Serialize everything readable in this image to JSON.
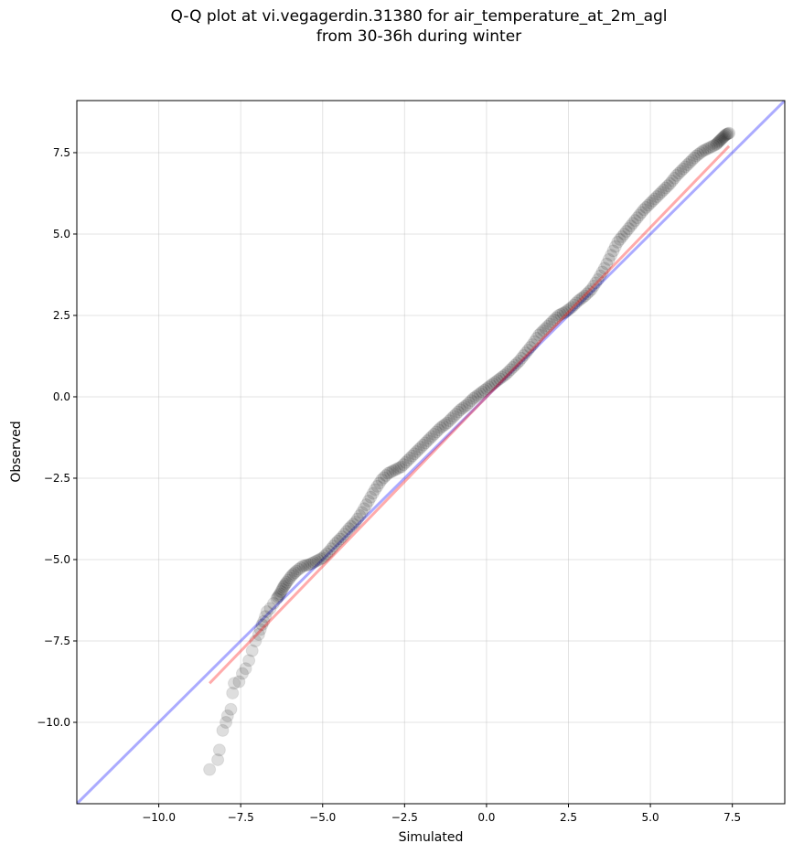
{
  "chart_data": {
    "type": "scatter",
    "title": "Q-Q plot at vi.vegagerdin.31380 for air_temperature_at_2m_agl",
    "subtitle": "from 30-36h during winter",
    "xlabel": "Simulated",
    "ylabel": "Observed",
    "xlim": [
      -12.5,
      9.1
    ],
    "ylim": [
      -12.5,
      9.1
    ],
    "xticks": [
      "−10.0",
      "−7.5",
      "−5.0",
      "−2.5",
      "0.0",
      "2.5",
      "5.0",
      "7.5"
    ],
    "yticks": [
      "−10.0",
      "−7.5",
      "−5.0",
      "−2.5",
      "0.0",
      "2.5",
      "5.0",
      "7.5"
    ],
    "xtick_values": [
      -10,
      -7.5,
      -5,
      -2.5,
      0,
      2.5,
      5,
      7.5
    ],
    "ytick_values": [
      -10,
      -7.5,
      -5,
      -2.5,
      0,
      2.5,
      5,
      7.5
    ],
    "grid": true,
    "colors": {
      "points": "#000000",
      "identity_line": "#0000ff",
      "quantile_line": "#ff0000"
    },
    "series": [
      {
        "kind": "points",
        "x": [
          -8.45,
          -8.2,
          -8.15,
          -8.05,
          -7.95,
          -7.9,
          -7.8,
          -7.75,
          -7.7,
          -7.55,
          -7.45,
          -7.35,
          -7.25,
          -7.15,
          -7.05,
          -6.95,
          -6.9,
          -6.85,
          -6.8,
          -6.75,
          -6.7,
          -6.6,
          -6.5,
          -6.4,
          -6.3,
          -6.2,
          -6.1,
          -5.95,
          -5.8,
          -5.6,
          -5.4,
          -5.2,
          -5.0,
          -4.8,
          -4.6,
          -4.4,
          -4.2,
          -4.0,
          -3.8,
          -3.6,
          -3.4,
          -3.2,
          -3.0,
          -2.8,
          -2.6,
          -2.4,
          -2.2,
          -2.0,
          -1.8,
          -1.6,
          -1.4,
          -1.2,
          -1.0,
          -0.8,
          -0.6,
          -0.4,
          -0.2,
          0.0,
          0.2,
          0.4,
          0.6,
          0.8,
          1.0,
          1.2,
          1.4,
          1.6,
          1.8,
          2.0,
          2.2,
          2.4,
          2.6,
          2.8,
          3.0,
          3.2,
          3.4,
          3.6,
          3.8,
          4.0,
          4.2,
          4.4,
          4.6,
          4.8,
          5.0,
          5.2,
          5.4,
          5.6,
          5.8,
          6.0,
          6.2,
          6.4,
          6.6,
          6.8,
          7.0,
          7.1,
          7.2,
          7.3,
          7.4
        ],
        "y": [
          -11.45,
          -11.15,
          -10.85,
          -10.25,
          -10.0,
          -9.8,
          -9.6,
          -9.1,
          -8.8,
          -8.75,
          -8.5,
          -8.35,
          -8.1,
          -7.8,
          -7.5,
          -7.3,
          -7.15,
          -7.0,
          -6.9,
          -6.75,
          -6.6,
          -6.5,
          -6.35,
          -6.2,
          -6.05,
          -5.85,
          -5.7,
          -5.5,
          -5.35,
          -5.2,
          -5.15,
          -5.05,
          -4.95,
          -4.75,
          -4.5,
          -4.3,
          -4.05,
          -3.85,
          -3.55,
          -3.2,
          -2.85,
          -2.55,
          -2.35,
          -2.25,
          -2.15,
          -1.95,
          -1.75,
          -1.55,
          -1.35,
          -1.15,
          -0.95,
          -0.8,
          -0.6,
          -0.4,
          -0.25,
          -0.05,
          0.1,
          0.25,
          0.4,
          0.55,
          0.7,
          0.9,
          1.1,
          1.35,
          1.6,
          1.9,
          2.1,
          2.3,
          2.5,
          2.6,
          2.75,
          2.95,
          3.1,
          3.3,
          3.6,
          3.95,
          4.35,
          4.75,
          5.0,
          5.25,
          5.5,
          5.75,
          5.95,
          6.15,
          6.35,
          6.55,
          6.8,
          7.0,
          7.2,
          7.4,
          7.55,
          7.65,
          7.75,
          7.85,
          7.95,
          8.05,
          8.1
        ]
      },
      {
        "kind": "identity_line",
        "x": [
          -12.5,
          9.1
        ],
        "y": [
          -12.5,
          9.1
        ]
      },
      {
        "kind": "quantile_line",
        "x": [
          -8.45,
          7.4
        ],
        "y": [
          -8.8,
          7.7
        ]
      }
    ]
  }
}
